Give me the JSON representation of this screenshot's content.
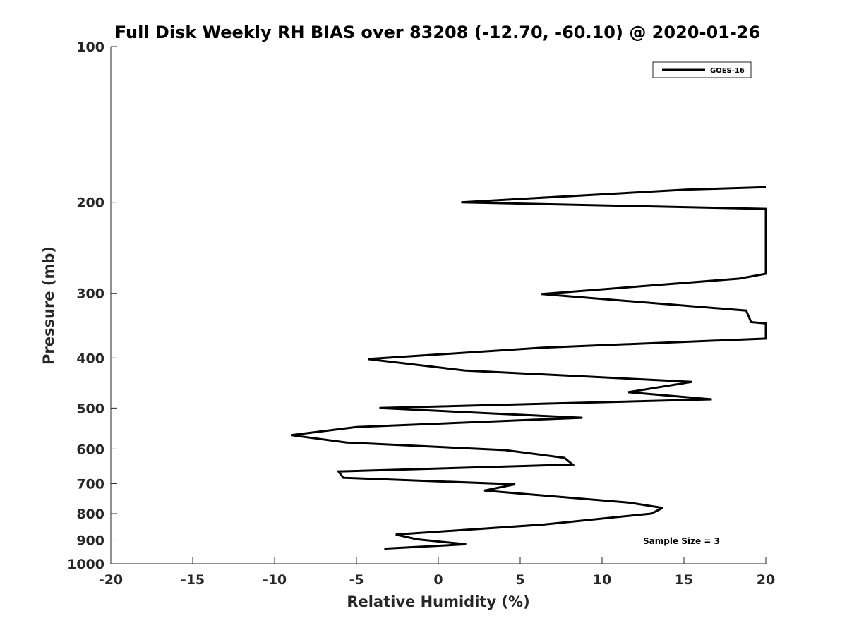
{
  "chart_data": {
    "type": "line",
    "title": "Full Disk Weekly RH BIAS over 83208 (-12.70, -60.10) @ 2020-01-26",
    "xlabel": "Relative Humidity (%)",
    "ylabel": "Pressure (mb)",
    "xlim": [
      -20,
      20
    ],
    "ylim": [
      100,
      1000
    ],
    "y_scale": "log",
    "y_reversed": true,
    "grid": false,
    "legend_position": "top-right",
    "x_ticks": [
      "-20",
      "-15",
      "-10",
      "-5",
      "0",
      "5",
      "10",
      "15",
      "20"
    ],
    "y_ticks": [
      "100",
      "200",
      "300",
      "400",
      "500",
      "600",
      "700",
      "800",
      "900",
      "1000"
    ],
    "annotation": "Sample Size = 3",
    "series": [
      {
        "name": "GOES-16",
        "color": "#000000",
        "points": [
          [
            20.0,
            187
          ],
          [
            15.2,
            189
          ],
          [
            1.4,
            200
          ],
          [
            20.0,
            206
          ],
          [
            20.0,
            275
          ],
          [
            18.4,
            281
          ],
          [
            6.3,
            301
          ],
          [
            18.8,
            324
          ],
          [
            19.1,
            341
          ],
          [
            20.0,
            343
          ],
          [
            20.0,
            367
          ],
          [
            6.4,
            382
          ],
          [
            -4.3,
            402
          ],
          [
            1.6,
            423
          ],
          [
            15.5,
            445
          ],
          [
            11.6,
            466
          ],
          [
            16.7,
            481
          ],
          [
            -3.6,
            500
          ],
          [
            8.8,
            522
          ],
          [
            -5.0,
            544
          ],
          [
            -9.0,
            564
          ],
          [
            -5.6,
            583
          ],
          [
            4.1,
            603
          ],
          [
            7.7,
            624
          ],
          [
            8.2,
            643
          ],
          [
            -6.1,
            663
          ],
          [
            -5.8,
            682
          ],
          [
            4.7,
            702
          ],
          [
            2.8,
            722
          ],
          [
            11.7,
            762
          ],
          [
            13.7,
            780
          ],
          [
            13.0,
            800
          ],
          [
            6.4,
            840
          ],
          [
            -2.6,
            878
          ],
          [
            -1.3,
            897
          ],
          [
            1.7,
            917
          ],
          [
            -3.3,
            935
          ]
        ]
      }
    ]
  }
}
